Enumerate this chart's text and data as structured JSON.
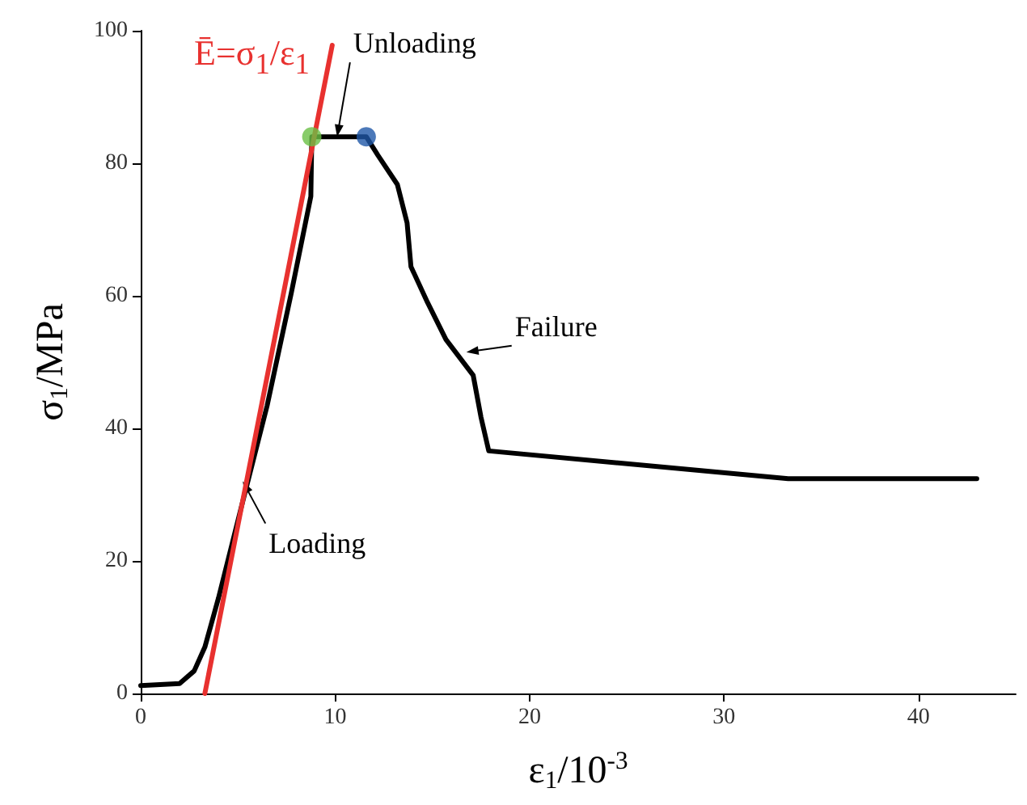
{
  "chart_data": {
    "type": "line",
    "xlabel": "ε$_{1}$/10$^{-3}$",
    "ylabel": "σ$_{1}$/MPa",
    "xlim": [
      0,
      45
    ],
    "xticks": [
      0,
      10,
      20,
      30,
      40
    ],
    "ylim": [
      0,
      100
    ],
    "yticks": [
      0,
      20,
      40,
      60,
      80,
      100
    ],
    "grid": false,
    "legend": false,
    "marker": "none",
    "line_style": "solid",
    "series": [
      {
        "color": "#000000",
        "x": [
          0,
          2,
          2.75,
          3.3,
          4,
          5.25,
          6.5,
          7.75,
          8.75,
          8.8,
          11.6,
          12.2,
          13.2,
          13.7,
          13.9,
          14.75,
          15.7,
          17.1,
          17.5,
          17.9,
          33.3,
          43
        ],
        "values": [
          1.2,
          1.5,
          3.4,
          7,
          14.4,
          29,
          43.4,
          60.5,
          75,
          84,
          84,
          81.2,
          76.8,
          71,
          64.4,
          59,
          53.4,
          48,
          41.7,
          36.6,
          32.4,
          32.4
        ]
      },
      {
        "name": "Ē=σ$_{1}$/ε$_{1}$",
        "color": "#e8312f",
        "x": [
          3.3,
          9.85
        ],
        "values": [
          0,
          97.8
        ]
      },
      {
        "type": "scatter",
        "marker": "circle",
        "color": "#6abf45",
        "x": [
          8.8
        ],
        "values": [
          84
        ]
      },
      {
        "type": "scatter",
        "marker": "circle",
        "color": "#1f57a8",
        "x": [
          11.6
        ],
        "values": [
          84
        ]
      }
    ],
    "annotations": [
      {
        "text": "Unloading",
        "x": 10.1,
        "y": 84
      },
      {
        "text": "Failure",
        "x": 16.75,
        "y": 51.5
      },
      {
        "text": "Loading",
        "x": 5.25,
        "y": 32
      }
    ]
  }
}
